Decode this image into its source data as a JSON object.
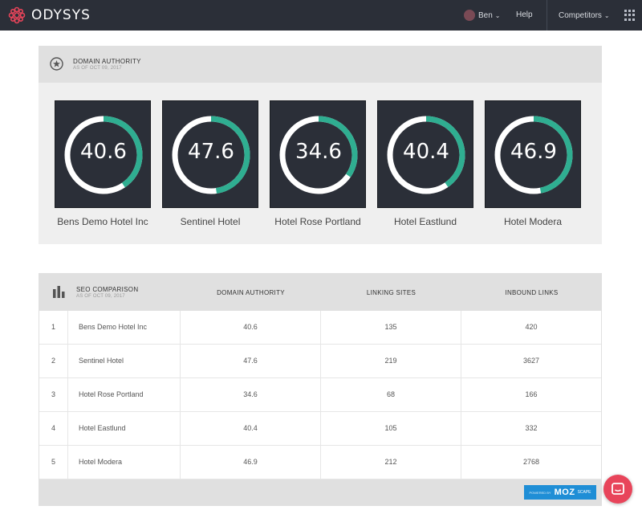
{
  "app": {
    "name": "ODYSYS"
  },
  "nav": {
    "user": "Ben",
    "help": "Help",
    "competitors": "Competitors"
  },
  "domain_authority": {
    "title": "DOMAIN AUTHORITY",
    "subtitle": "AS OF OCT 09, 2017",
    "cards": [
      {
        "name": "Bens Demo Hotel Inc",
        "value": "40.6",
        "score": 40.6
      },
      {
        "name": "Sentinel Hotel",
        "value": "47.6",
        "score": 47.6
      },
      {
        "name": "Hotel Rose Portland",
        "value": "34.6",
        "score": 34.6
      },
      {
        "name": "Hotel Eastlund",
        "value": "40.4",
        "score": 40.4
      },
      {
        "name": "Hotel Modera",
        "value": "46.9",
        "score": 46.9
      }
    ],
    "ring_color": "#2fae91",
    "ring_track_color": "#ffffff"
  },
  "seo": {
    "title": "SEO COMPARISON",
    "subtitle": "AS OF OCT 09, 2017",
    "columns": [
      "DOMAIN AUTHORITY",
      "LINKING SITES",
      "INBOUND LINKS"
    ],
    "rows": [
      {
        "num": "1",
        "name": "Bens Demo Hotel Inc",
        "da": "40.6",
        "ls": "135",
        "il": "420"
      },
      {
        "num": "2",
        "name": "Sentinel Hotel",
        "da": "47.6",
        "ls": "219",
        "il": "3627"
      },
      {
        "num": "3",
        "name": "Hotel Rose Portland",
        "da": "34.6",
        "ls": "68",
        "il": "166"
      },
      {
        "num": "4",
        "name": "Hotel Eastlund",
        "da": "40.4",
        "ls": "105",
        "il": "332"
      },
      {
        "num": "5",
        "name": "Hotel Modera",
        "da": "46.9",
        "ls": "212",
        "il": "2768"
      }
    ],
    "badge": {
      "small": "POWERED BY",
      "big": "MOZ",
      "suffix": "SCAPE"
    }
  },
  "colors": {
    "topbar": "#2b2f38",
    "accent": "#2fae91",
    "logo": "#e8445a",
    "chat": "#e8445a"
  }
}
